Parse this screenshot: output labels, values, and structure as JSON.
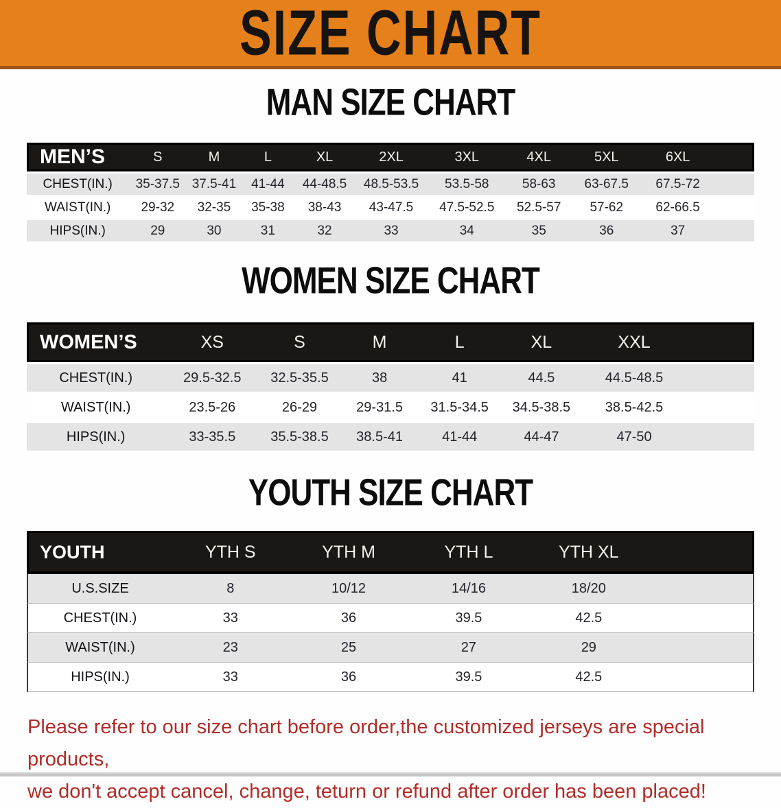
{
  "colors": {
    "banner_bg": "#e6801a",
    "banner_edge": "#a05513",
    "table_header_bg": "#1a1715",
    "row_stripe": "#e4e4e4",
    "notice_red": "#b22c28"
  },
  "banner": {
    "title": "SIZE CHART"
  },
  "sections": [
    {
      "id": "men",
      "heading": "MAN SIZE CHART",
      "corner_label": "MEN’S",
      "columns": [
        "S",
        "M",
        "L",
        "XL",
        "2XL",
        "3XL",
        "4XL",
        "5XL",
        "6XL"
      ],
      "rows": [
        {
          "label": "CHEST(IN.)",
          "values": [
            "35-37.5",
            "37.5-41",
            "41-44",
            "44-48.5",
            "48.5-53.5",
            "53.5-58",
            "58-63",
            "63-67.5",
            "67.5-72"
          ]
        },
        {
          "label": "WAIST(IN.)",
          "values": [
            "29-32",
            "32-35",
            "35-38",
            "38-43",
            "43-47.5",
            "47.5-52.5",
            "52.5-57",
            "57-62",
            "62-66.5"
          ]
        },
        {
          "label": "HIPS(IN.)",
          "values": [
            "29",
            "30",
            "31",
            "32",
            "33",
            "34",
            "35",
            "36",
            "37"
          ]
        }
      ]
    },
    {
      "id": "women",
      "heading": "WOMEN SIZE CHART",
      "corner_label": "WOMEN’S",
      "columns": [
        "XS",
        "S",
        "M",
        "L",
        "XL",
        "XXL"
      ],
      "rows": [
        {
          "label": "CHEST(IN.)",
          "values": [
            "29.5-32.5",
            "32.5-35.5",
            "38",
            "41",
            "44.5",
            "44.5-48.5"
          ]
        },
        {
          "label": "WAIST(IN.)",
          "values": [
            "23.5-26",
            "26-29",
            "29-31.5",
            "31.5-34.5",
            "34.5-38.5",
            "38.5-42.5"
          ]
        },
        {
          "label": "HIPS(IN.)",
          "values": [
            "33-35.5",
            "35.5-38.5",
            "38.5-41",
            "41-44",
            "44-47",
            "47-50"
          ]
        }
      ]
    },
    {
      "id": "youth",
      "heading": "YOUTH SIZE CHART",
      "corner_label": "YOUTH",
      "columns": [
        "YTH S",
        "YTH M",
        "YTH L",
        "YTH XL"
      ],
      "rows": [
        {
          "label": "U.S.SIZE",
          "values": [
            "8",
            "10/12",
            "14/16",
            "18/20"
          ]
        },
        {
          "label": "CHEST(IN.)",
          "values": [
            "33",
            "36",
            "39.5",
            "42.5"
          ]
        },
        {
          "label": "WAIST(IN.)",
          "values": [
            "23",
            "25",
            "27",
            "29"
          ]
        },
        {
          "label": "HIPS(IN.)",
          "values": [
            "33",
            "36",
            "39.5",
            "42.5"
          ]
        }
      ]
    }
  ],
  "footer": {
    "line1": "Please refer to our size chart before order,the customized jerseys are special products,",
    "line2": "we don't accept cancel, change, teturn or refund after order has been placed!"
  }
}
